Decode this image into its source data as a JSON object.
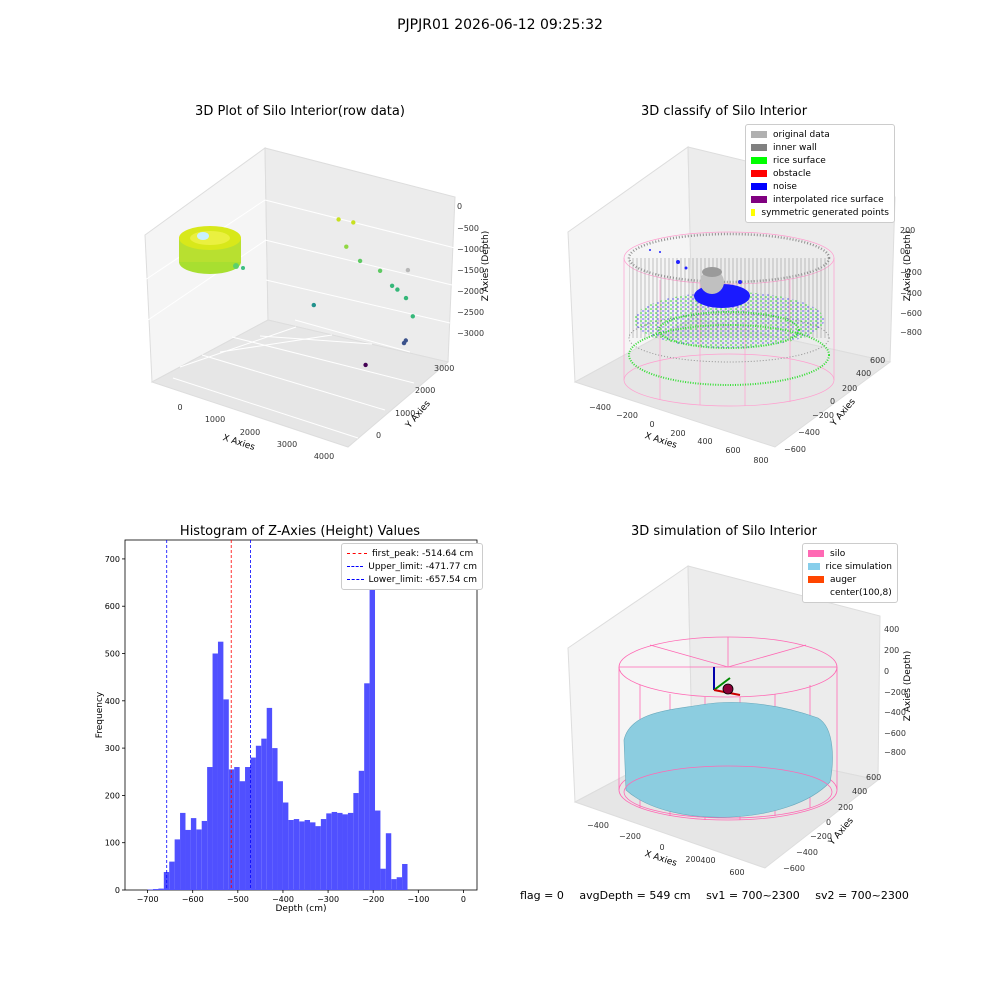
{
  "suptitle": "PJPJR01 2026-06-12 09:25:32",
  "footer": {
    "flag": "flag = 0",
    "avg": "avgDepth = 549 cm",
    "sv1": "sv1 = 700~2300",
    "sv2": "sv2 = 700~2300"
  },
  "colors": {
    "hist": "#5050ff",
    "first_peak": "#ff0000",
    "limits": "#0000ff",
    "silo": "#ff69b4",
    "rice": "#87ceeb",
    "auger": "#ff4500"
  },
  "chart_data": [
    {
      "type": "scatter",
      "title": "3D Plot of Silo Interior(row data)",
      "xlabel": "X Axies",
      "ylabel": "Y Axies",
      "zlabel": "Z Axies (Depth)",
      "xticks": [
        "0",
        "1000",
        "2000",
        "3000",
        "4000"
      ],
      "yticks": [
        "0",
        "1000",
        "2000",
        "3000"
      ],
      "zticks": [
        "0",
        "−500",
        "−1000",
        "−1500",
        "−2000",
        "−2500",
        "−3000"
      ],
      "grid": true,
      "points": [
        {
          "x": 1300,
          "y": 2400,
          "z": -1400
        },
        {
          "x": 1650,
          "y": 2300,
          "z": -1250
        },
        {
          "x": 1750,
          "y": 1950,
          "z": -1700
        },
        {
          "x": 2050,
          "y": 1900,
          "z": -1900
        },
        {
          "x": 2400,
          "y": 1950,
          "z": -2000
        },
        {
          "x": 2800,
          "y": 2150,
          "z": -1850
        },
        {
          "x": 2700,
          "y": 1850,
          "z": -2200
        },
        {
          "x": 2800,
          "y": 1850,
          "z": -2250
        },
        {
          "x": 3000,
          "y": 1800,
          "z": -2350
        },
        {
          "x": 3400,
          "y": 1400,
          "z": -2450
        },
        {
          "x": 1900,
          "y": 800,
          "z": -2700
        },
        {
          "x": 3500,
          "y": 1050,
          "z": -2900
        },
        {
          "x": 3500,
          "y": 1000,
          "z": -2950
        },
        {
          "x": 3300,
          "y": 200,
          "z": -3300
        }
      ]
    },
    {
      "type": "scatter",
      "title": "3D classify of Silo Interior",
      "xlabel": "X Axies",
      "ylabel": "Y Axies",
      "zlabel": "Z Axies (Depth)",
      "xticks": [
        "−400",
        "−200",
        "0",
        "200",
        "400",
        "600",
        "800"
      ],
      "yticks": [
        "−600",
        "−400",
        "−200",
        "0",
        "200",
        "400",
        "600"
      ],
      "zticks": [
        "200",
        "0",
        "−200",
        "−400",
        "−600",
        "−800"
      ],
      "grid": true,
      "legend": "top-right",
      "series": [
        {
          "name": "original data",
          "color": "#b0b0b0"
        },
        {
          "name": "inner wall",
          "color": "#808080"
        },
        {
          "name": "rice surface",
          "color": "#00ff00"
        },
        {
          "name": "obstacle",
          "color": "#ff0000"
        },
        {
          "name": "noise",
          "color": "#0000ff"
        },
        {
          "name": "interpolated rice surface",
          "color": "#800080"
        },
        {
          "name": "symmetric generated points",
          "color": "#ffff00"
        }
      ]
    },
    {
      "type": "bar",
      "title": "Histogram of Z-Axies (Height) Values",
      "xlabel": "Depth (cm)",
      "ylabel": "Frequency",
      "xlim": [
        -750,
        30
      ],
      "ylim": [
        0,
        740
      ],
      "xticks": [
        -700,
        -600,
        -500,
        -400,
        -300,
        -200,
        -100,
        0
      ],
      "xtick_labels": [
        "−700",
        "−600",
        "−500",
        "−400",
        "−300",
        "−200",
        "−100",
        "0"
      ],
      "yticks": [
        0,
        100,
        200,
        300,
        400,
        500,
        600,
        700
      ],
      "bin_start": -700,
      "bin_width": 12,
      "values": [
        1,
        2,
        3,
        38,
        60,
        107,
        163,
        127,
        152,
        128,
        146,
        260,
        500,
        525,
        403,
        255,
        260,
        230,
        260,
        280,
        305,
        320,
        385,
        300,
        230,
        185,
        148,
        150,
        145,
        148,
        143,
        135,
        150,
        162,
        165,
        163,
        160,
        163,
        205,
        252,
        437,
        700,
        168,
        45,
        120,
        23,
        27,
        55
      ],
      "legend": "top-right",
      "lines": [
        {
          "label": "first_peak: -514.64 cm",
          "x": -514.64,
          "color": "#ff0000"
        },
        {
          "label": "Upper_limit: -471.77 cm",
          "x": -471.77,
          "color": "#0000ff"
        },
        {
          "label": "Lower_limit: -657.54 cm",
          "x": -657.54,
          "color": "#0000ff"
        }
      ]
    },
    {
      "type": "area",
      "title": "3D simulation of Silo Interior",
      "xlabel": "X Axies",
      "ylabel": "Y Axies",
      "zlabel": "Z Axies (Depth)",
      "xticks": [
        "−400",
        "−200",
        "0",
        "200",
        "400",
        "600"
      ],
      "yticks": [
        "−600",
        "−400",
        "−200",
        "0",
        "200",
        "400",
        "600"
      ],
      "zticks": [
        "400",
        "200",
        "0",
        "−200",
        "−400",
        "−600",
        "−800"
      ],
      "grid": true,
      "legend": "top-right",
      "series": [
        {
          "name": "silo",
          "color": "#ff69b4"
        },
        {
          "name": "rice simulation",
          "color": "#87ceeb"
        },
        {
          "name": "auger",
          "color": "#ff4500"
        },
        {
          "name": "center(100,8)",
          "color": ""
        }
      ]
    }
  ]
}
